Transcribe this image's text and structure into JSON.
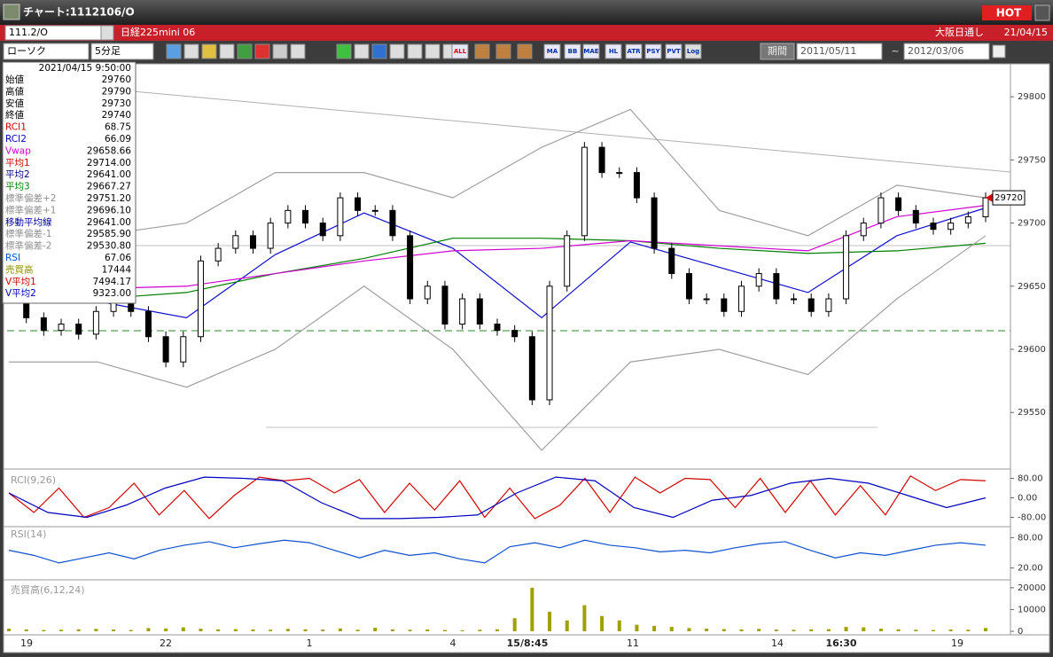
{
  "window": {
    "title": "チャート:1112106/O",
    "hot": "HOT"
  },
  "symbol_bar": {
    "code": "111.2/O",
    "name": "日経225mini 06",
    "market": "大阪日通し",
    "date": "21/04/15"
  },
  "toolbar": {
    "chart_type": "ローソク",
    "period": "5分足",
    "icons": [
      "ALL",
      "MA",
      "BB",
      "MAE",
      "HL",
      "ATR",
      "PSY",
      "PVT",
      "Log"
    ],
    "range_button": "期間",
    "from": "2011/05/11",
    "tilde": "~",
    "to": "2012/03/06"
  },
  "info_panel": {
    "datetime": "2021/04/15 9:50:00",
    "rows": [
      {
        "label": "始値",
        "value": "29760",
        "color": "#000000"
      },
      {
        "label": "高値",
        "value": "29790",
        "color": "#000000"
      },
      {
        "label": "安値",
        "value": "29730",
        "color": "#000000"
      },
      {
        "label": "終値",
        "value": "29740",
        "color": "#000000"
      },
      {
        "label": "RCI1",
        "value": "68.75",
        "color": "#d00000"
      },
      {
        "label": "RCI2",
        "value": "66.09",
        "color": "#0000c0"
      },
      {
        "label": "Vwap",
        "value": "29658.66",
        "color": "#d000d0"
      },
      {
        "label": "平均1",
        "value": "29714.00",
        "color": "#d00000"
      },
      {
        "label": "平均2",
        "value": "29641.00",
        "color": "#000080"
      },
      {
        "label": "平均3",
        "value": "29667.27",
        "color": "#008000"
      },
      {
        "label": "標準偏差+2",
        "value": "29751.20",
        "color": "#909090"
      },
      {
        "label": "標準偏差+1",
        "value": "29696.10",
        "color": "#909090"
      },
      {
        "label": "移動平均線",
        "value": "29641.00",
        "color": "#0000a0"
      },
      {
        "label": "標準偏差-1",
        "value": "29585.90",
        "color": "#909090"
      },
      {
        "label": "標準偏差-2",
        "value": "29530.80",
        "color": "#909090"
      },
      {
        "label": "RSI",
        "value": "67.06",
        "color": "#0050d0"
      },
      {
        "label": "売買高",
        "value": "17444",
        "color": "#909000"
      },
      {
        "label": "V平均1",
        "value": "7494.17",
        "color": "#d00000"
      },
      {
        "label": "V平均2",
        "value": "9323.00",
        "color": "#0000c0"
      }
    ]
  },
  "x_labels": [
    "19",
    "22",
    "1",
    "4",
    "15/8:45",
    "11",
    "14",
    "16:30",
    "19"
  ],
  "last_price": "29720",
  "chart_data": [
    {
      "type": "candlestick",
      "ylim": [
        29508,
        29824
      ],
      "yticks": [
        29550,
        29600,
        29650,
        29700,
        29750,
        29800
      ],
      "close": [
        29640,
        29625,
        29615,
        29620,
        29612,
        29630,
        29640,
        29630,
        29610,
        29590,
        29610,
        29670,
        29680,
        29690,
        29680,
        29700,
        29710,
        29700,
        29690,
        29720,
        29710,
        29710,
        29690,
        29640,
        29650,
        29620,
        29640,
        29620,
        29615,
        29610,
        29560,
        29650,
        29690,
        29760,
        29740,
        29740,
        29720,
        29680,
        29660,
        29640,
        29640,
        29630,
        29650,
        29660,
        29640,
        29640,
        29630,
        29640,
        29690,
        29700,
        29720,
        29710,
        29700,
        29695,
        29700,
        29705,
        29720
      ],
      "series": [
        {
          "name": "平均2",
          "color": "#1010d0",
          "values": [
            29645,
            29638,
            29625,
            29675,
            29708,
            29680,
            29625,
            29685,
            29665,
            29645,
            29690,
            29712
          ]
        },
        {
          "name": "平均3",
          "color": "#008000",
          "values": [
            29642,
            29640,
            29645,
            29660,
            29672,
            29688,
            29688,
            29686,
            29680,
            29676,
            29678,
            29684
          ]
        },
        {
          "name": "Vwap",
          "color": "#d000d0",
          "values": [
            29650,
            29648,
            29650,
            29660,
            29670,
            29678,
            29680,
            29686,
            29682,
            29678,
            29705,
            29714
          ]
        },
        {
          "name": "標準偏差+2",
          "color": "#a0a0a0",
          "values": [
            29700,
            29690,
            29700,
            29740,
            29740,
            29720,
            29760,
            29790,
            29710,
            29690,
            29730,
            29720
          ]
        },
        {
          "name": "標準偏差-2",
          "color": "#a0a0a0",
          "values": [
            29590,
            29590,
            29570,
            29600,
            29650,
            29600,
            29520,
            29590,
            29600,
            29580,
            29640,
            29690
          ]
        }
      ]
    },
    {
      "type": "line",
      "label": "RCI(9,26)",
      "ylim": [
        -100,
        100
      ],
      "yticks": [
        {
          "value": 80,
          "label": "80.00"
        },
        {
          "value": 0,
          "label": "0.00"
        },
        {
          "value": -80,
          "label": "-80.00"
        }
      ],
      "series": [
        {
          "name": "RCI1",
          "color": "#d00000",
          "values": [
            20,
            -60,
            40,
            -80,
            -40,
            60,
            -70,
            30,
            -85,
            10,
            85,
            70,
            80,
            20,
            75,
            -60,
            60,
            -50,
            70,
            -80,
            40,
            -85,
            -30,
            80,
            -60,
            85,
            20,
            80,
            75,
            -40,
            80,
            -60,
            70,
            -70,
            50,
            -70,
            90,
            30,
            75,
            70
          ]
        },
        {
          "name": "RCI2",
          "color": "#0000c0",
          "values": [
            20,
            -60,
            -80,
            -30,
            40,
            85,
            80,
            70,
            -20,
            -85,
            -85,
            -80,
            -70,
            20,
            85,
            70,
            -40,
            -80,
            -10,
            10,
            60,
            80,
            60,
            10,
            -40,
            0
          ]
        }
      ]
    },
    {
      "type": "line",
      "label": "RSI(14)",
      "ylim": [
        0,
        100
      ],
      "yticks": [
        {
          "value": 80,
          "label": "80.00"
        },
        {
          "value": 20,
          "label": "20.00"
        }
      ],
      "series": [
        {
          "name": "RSI",
          "color": "#1050d0",
          "values": [
            55,
            45,
            30,
            40,
            50,
            38,
            55,
            65,
            72,
            60,
            68,
            75,
            70,
            55,
            40,
            55,
            45,
            50,
            38,
            30,
            62,
            70,
            60,
            75,
            65,
            60,
            52,
            55,
            50,
            60,
            68,
            72,
            55,
            40,
            50,
            45,
            55,
            65,
            70,
            65
          ]
        }
      ]
    },
    {
      "type": "bar",
      "label": "売買高(6,12,24)",
      "ylim": [
        0,
        22000
      ],
      "yticks": [
        0,
        10000,
        20000
      ],
      "color": "#a0a000",
      "values": [
        1200,
        800,
        600,
        700,
        900,
        1100,
        800,
        600,
        1500,
        1300,
        1800,
        1200,
        900,
        1000,
        800,
        700,
        1100,
        900,
        800,
        1300,
        700,
        1600,
        900,
        700,
        800,
        600,
        500,
        700,
        900,
        6000,
        20000,
        9000,
        5000,
        12000,
        7000,
        5000,
        3000,
        2500,
        2000,
        1500,
        1200,
        1000,
        900,
        1100,
        800,
        700,
        900,
        1000,
        2000,
        1800,
        1200,
        900,
        700,
        600,
        800,
        700,
        1500
      ]
    }
  ]
}
